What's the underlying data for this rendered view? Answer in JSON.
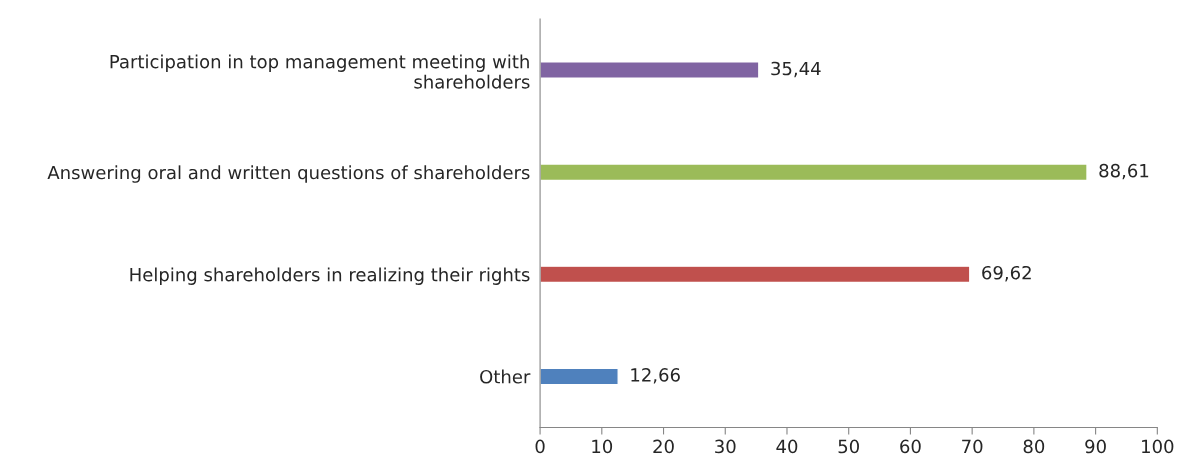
{
  "chart_data": {
    "type": "bar",
    "orientation": "horizontal",
    "categories": [
      "Participation in top management meeting with shareholders",
      "Answering oral and written questions of shareholders",
      "Helping shareholders in realizing their rights",
      "Other"
    ],
    "values": [
      35.44,
      88.61,
      69.62,
      12.66
    ],
    "colors": [
      "#8064a2",
      "#9bbb59",
      "#c0504d",
      "#4f81bd"
    ],
    "value_labels": [
      "35,44",
      "88,61",
      "69,62",
      "12,66"
    ],
    "xlim": [
      0,
      100
    ],
    "xticks": [
      0,
      10,
      20,
      30,
      40,
      50,
      60,
      70,
      80,
      90,
      100
    ],
    "grid": false,
    "legend": false
  }
}
